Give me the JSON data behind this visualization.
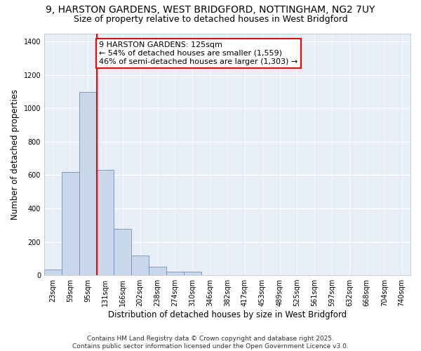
{
  "title_line1": "9, HARSTON GARDENS, WEST BRIDGFORD, NOTTINGHAM, NG2 7UY",
  "title_line2": "Size of property relative to detached houses in West Bridgford",
  "xlabel": "Distribution of detached houses by size in West Bridgford",
  "ylabel": "Number of detached properties",
  "bin_labels": [
    "23sqm",
    "59sqm",
    "95sqm",
    "131sqm",
    "166sqm",
    "202sqm",
    "238sqm",
    "274sqm",
    "310sqm",
    "346sqm",
    "382sqm",
    "417sqm",
    "453sqm",
    "489sqm",
    "525sqm",
    "561sqm",
    "597sqm",
    "632sqm",
    "668sqm",
    "704sqm",
    "740sqm"
  ],
  "bar_values": [
    35,
    620,
    1100,
    630,
    280,
    120,
    50,
    20,
    20,
    0,
    0,
    0,
    0,
    0,
    0,
    0,
    0,
    0,
    0,
    0,
    0
  ],
  "bar_color": "#c8d8ea",
  "bar_edge_color": "#7090b8",
  "vline_color": "red",
  "vline_pos": 2.5,
  "annotation_text": "9 HARSTON GARDENS: 125sqm\n← 54% of detached houses are smaller (1,559)\n46% of semi-detached houses are larger (1,303) →",
  "annotation_box_color": "white",
  "annotation_box_edge": "red",
  "ylim": [
    0,
    1450
  ],
  "yticks": [
    0,
    200,
    400,
    600,
    800,
    1000,
    1200,
    1400
  ],
  "background_color": "#e8eef8",
  "grid_color": "#ffffff",
  "footer_line1": "Contains HM Land Registry data © Crown copyright and database right 2025.",
  "footer_line2": "Contains public sector information licensed under the Open Government Licence v3.0.",
  "title_fontsize": 10,
  "subtitle_fontsize": 9,
  "axis_label_fontsize": 8.5,
  "tick_fontsize": 7,
  "annotation_fontsize": 8,
  "footer_fontsize": 6.5
}
